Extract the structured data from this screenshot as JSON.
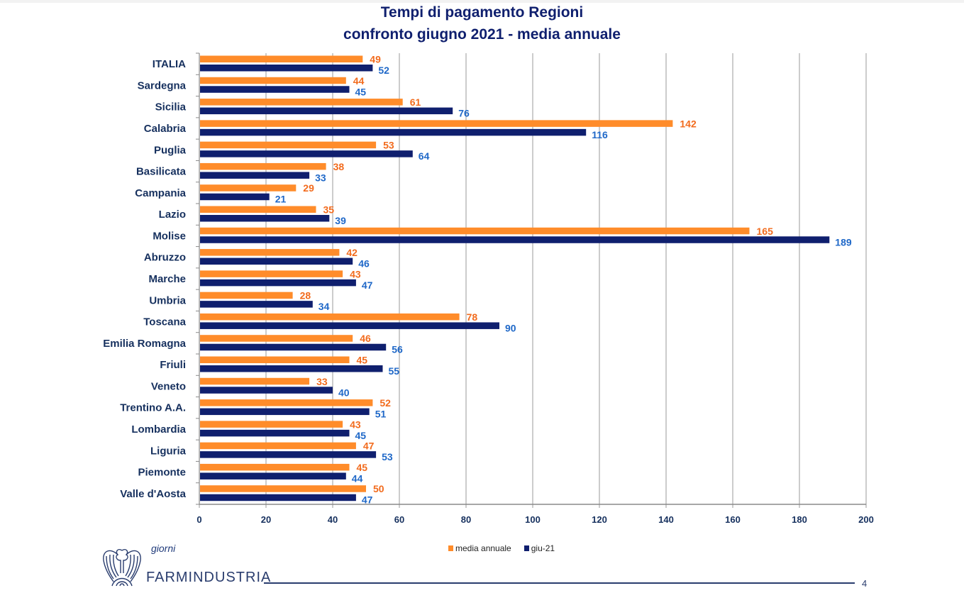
{
  "chart_data": {
    "type": "bar",
    "orientation": "horizontal",
    "title": "Tempi di pagamento Regioni",
    "subtitle": "confronto giugno 2021 - media annuale",
    "xlabel": "giorni",
    "ylabel": "",
    "xlim": [
      0,
      200
    ],
    "x_ticks": [
      0,
      20,
      40,
      60,
      80,
      100,
      120,
      140,
      160,
      180,
      200
    ],
    "grid": "vertical",
    "legend_position": "bottom",
    "categories": [
      "ITALIA",
      "Sardegna",
      "Sicilia",
      "Calabria",
      "Puglia",
      "Basilicata",
      "Campania",
      "Lazio",
      "Molise",
      "Abruzzo",
      "Marche",
      "Umbria",
      "Toscana",
      "Emilia Romagna",
      "Friuli",
      "Veneto",
      "Trentino A.A.",
      "Lombardia",
      "Liguria",
      "Piemonte",
      "Valle d'Aosta"
    ],
    "series": [
      {
        "name": "media annuale",
        "color": "#ff8c2a",
        "label_color": "#f26b1d",
        "values": [
          49,
          44,
          61,
          142,
          53,
          38,
          29,
          35,
          165,
          42,
          43,
          28,
          78,
          46,
          45,
          33,
          52,
          43,
          47,
          45,
          50
        ]
      },
      {
        "name": "giu-21",
        "color": "#0f1f6e",
        "label_color": "#1f68c8",
        "values": [
          52,
          45,
          76,
          116,
          64,
          33,
          21,
          39,
          189,
          46,
          47,
          34,
          90,
          56,
          55,
          40,
          51,
          45,
          53,
          44,
          47
        ]
      }
    ]
  },
  "header": {
    "title": "Tempi di pagamento Regioni",
    "subtitle": "confronto giugno 2021 - media annuale"
  },
  "legend": {
    "items": [
      {
        "label": "media annuale",
        "color": "#ff8c2a"
      },
      {
        "label": "giu-21",
        "color": "#0f1f6e"
      }
    ]
  },
  "footer": {
    "unit": "giorni",
    "brand": "FARMINDUSTRIA",
    "page_number": "4"
  }
}
